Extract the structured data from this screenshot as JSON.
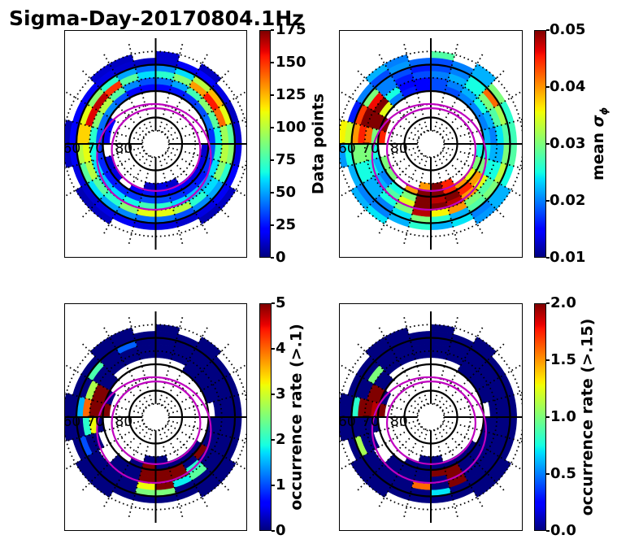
{
  "suptitle": "Sigma-Day-20170804.1Hz",
  "shared_overlay": {
    "projection": "polar MLAT/MLT, MLT 0 at bottom, 6 right, 12 top, 18 left",
    "solid_mlat_circles": [
      60,
      70,
      80
    ],
    "dotted_mlat_circles": [
      55,
      65,
      75,
      85
    ],
    "mlt_line_step_hours": 1,
    "grid_color": "#000000",
    "lat_labels": [
      "60",
      "70",
      "80"
    ],
    "oval_boundaries": [
      {
        "name": "oval-equatorward",
        "color": "#bf00bf",
        "mlat_at_mlt": {
          "0": 65.1,
          "6": 69.1,
          "12": 74.9,
          "18": 67.8
        }
      },
      {
        "name": "oval-poleward",
        "color": "#bf00bf",
        "mlat_at_mlt": {
          "0": 72.2,
          "6": 73.1,
          "12": 76.5,
          "18": 73.4
        }
      }
    ]
  },
  "chart_data": [
    {
      "type": "heatmap",
      "title": "",
      "colorbar": {
        "label": "Data points",
        "colormap": "jet",
        "range": [
          0,
          175
        ],
        "ticks": [
          0,
          25,
          50,
          75,
          100,
          125,
          150,
          175
        ],
        "tick_labels": [
          "0",
          "25",
          "50",
          "75",
          "100",
          "125",
          "150",
          "175"
        ]
      },
      "mlat_bands": [
        [
          55,
          57.5
        ],
        [
          57.5,
          60
        ],
        [
          60,
          62.5
        ],
        [
          62.5,
          65
        ],
        [
          65,
          67.5
        ],
        [
          67.5,
          70
        ],
        [
          70,
          72.5
        ],
        [
          72.5,
          75
        ]
      ],
      "mlt_bin_hours": 1,
      "values": [
        [
          null,
          null,
          8,
          10,
          null,
          null,
          null,
          null,
          null,
          10,
          null,
          12,
          null,
          10,
          12,
          null,
          null,
          8,
          10,
          null,
          8,
          10,
          null,
          null
        ],
        [
          15,
          12,
          15,
          18,
          20,
          15,
          12,
          10,
          15,
          20,
          18,
          12,
          10,
          12,
          15,
          18,
          22,
          20,
          18,
          15,
          12,
          15,
          18,
          15
        ],
        [
          40,
          35,
          45,
          50,
          70,
          90,
          80,
          110,
          125,
          100,
          60,
          45,
          40,
          50,
          70,
          90,
          110,
          120,
          100,
          80,
          60,
          50,
          45,
          40
        ],
        [
          110,
          100,
          70,
          60,
          90,
          100,
          95,
          140,
          155,
          130,
          90,
          70,
          60,
          80,
          150,
          165,
          160,
          120,
          110,
          100,
          80,
          70,
          90,
          110
        ],
        [
          70,
          60,
          55,
          50,
          60,
          70,
          65,
          80,
          90,
          75,
          50,
          40,
          35,
          45,
          80,
          100,
          90,
          70,
          65,
          60,
          55,
          60,
          65,
          75
        ],
        [
          35,
          30,
          28,
          25,
          30,
          35,
          30,
          40,
          35,
          30,
          25,
          22,
          20,
          22,
          35,
          45,
          40,
          35,
          30,
          28,
          25,
          28,
          30,
          35
        ],
        [
          22,
          20,
          18,
          15,
          15,
          12,
          null,
          null,
          null,
          null,
          null,
          null,
          null,
          null,
          null,
          null,
          20,
          18,
          null,
          12,
          15,
          null,
          20,
          25
        ],
        [
          15,
          12,
          null,
          null,
          null,
          null,
          null,
          null,
          null,
          null,
          null,
          null,
          null,
          null,
          null,
          null,
          null,
          null,
          null,
          null,
          null,
          null,
          null,
          10
        ]
      ]
    },
    {
      "type": "heatmap",
      "title": "",
      "colorbar": {
        "label": "mean ",
        "label_symbol": "σ",
        "label_subscript": "ϕ",
        "colormap": "jet",
        "range": [
          0.01,
          0.05
        ],
        "ticks": [
          0.01,
          0.02,
          0.03,
          0.04,
          0.05
        ],
        "tick_labels": [
          "0.01",
          "0.02",
          "0.03",
          "0.04",
          "0.05"
        ]
      },
      "mlat_bands": [
        [
          55,
          57.5
        ],
        [
          57.5,
          60
        ],
        [
          60,
          62.5
        ],
        [
          62.5,
          65
        ],
        [
          65,
          67.5
        ],
        [
          67.5,
          70
        ],
        [
          70,
          72.5
        ],
        [
          72.5,
          75
        ]
      ],
      "mlt_bin_hours": 1,
      "values": [
        [
          null,
          null,
          0.021,
          0.022,
          null,
          null,
          null,
          null,
          null,
          0.022,
          null,
          0.028,
          null,
          0.02,
          0.022,
          null,
          null,
          0.036,
          0.021,
          null,
          0.022,
          0.024,
          null,
          null
        ],
        [
          0.022,
          0.024,
          0.02,
          0.022,
          0.025,
          0.028,
          0.027,
          0.026,
          0.03,
          0.022,
          0.02,
          0.018,
          0.019,
          0.021,
          0.018,
          0.02,
          0.016,
          0.034,
          0.025,
          0.022,
          0.02,
          0.02,
          0.022,
          0.026
        ],
        [
          0.026,
          0.022,
          0.028,
          0.03,
          0.033,
          0.03,
          0.028,
          0.032,
          0.042,
          0.025,
          0.02,
          0.018,
          0.016,
          0.018,
          0.02,
          0.03,
          0.044,
          0.04,
          0.03,
          0.025,
          0.022,
          0.02,
          0.024,
          0.03
        ],
        [
          0.036,
          0.04,
          0.03,
          0.028,
          0.025,
          0.022,
          0.024,
          0.028,
          0.03,
          0.025,
          0.022,
          0.02,
          0.018,
          0.016,
          0.02,
          0.046,
          0.05,
          0.045,
          0.03,
          0.025,
          0.022,
          0.025,
          0.03,
          0.048
        ],
        [
          0.05,
          0.048,
          0.04,
          0.035,
          0.025,
          0.022,
          0.02,
          0.022,
          0.025,
          0.022,
          0.02,
          0.018,
          0.015,
          0.015,
          0.025,
          0.05,
          0.05,
          0.042,
          0.03,
          0.025,
          0.022,
          0.028,
          0.035,
          0.05
        ],
        [
          0.048,
          0.05,
          0.045,
          0.04,
          0.03,
          0.025,
          0.022,
          0.02,
          0.02,
          0.02,
          0.018,
          0.018,
          0.015,
          0.016,
          0.02,
          0.035,
          0.05,
          0.03,
          0.025,
          0.022,
          0.02,
          0.025,
          0.03,
          0.05
        ],
        [
          0.05,
          0.045,
          0.04,
          0.035,
          0.03,
          0.025,
          null,
          null,
          null,
          null,
          null,
          null,
          null,
          null,
          null,
          null,
          0.05,
          0.045,
          null,
          0.03,
          0.03,
          null,
          0.04,
          0.05
        ],
        [
          0.05,
          0.045,
          null,
          null,
          null,
          null,
          null,
          null,
          null,
          null,
          null,
          null,
          null,
          null,
          null,
          null,
          null,
          null,
          null,
          null,
          null,
          null,
          null,
          0.04
        ]
      ]
    },
    {
      "type": "heatmap",
      "title": "",
      "colorbar": {
        "label": "occurrence rate (>.1)",
        "colormap": "jet",
        "range": [
          0,
          5
        ],
        "ticks": [
          0,
          1,
          2,
          3,
          4,
          5
        ],
        "tick_labels": [
          "0",
          "1",
          "2",
          "3",
          "4",
          "5"
        ]
      },
      "mlat_bands": [
        [
          55,
          57.5
        ],
        [
          57.5,
          60
        ],
        [
          60,
          62.5
        ],
        [
          62.5,
          65
        ],
        [
          65,
          67.5
        ],
        [
          67.5,
          70
        ],
        [
          70,
          72.5
        ],
        [
          72.5,
          75
        ]
      ],
      "mlt_bin_hours": 1,
      "values": [
        [
          null,
          null,
          0,
          0,
          null,
          null,
          null,
          null,
          null,
          0,
          null,
          0,
          null,
          0,
          0,
          null,
          null,
          0,
          0,
          null,
          0,
          0,
          null,
          null
        ],
        [
          0,
          0,
          0,
          0,
          0,
          0,
          0,
          0,
          0,
          0,
          0,
          0,
          0,
          0,
          0,
          0,
          0,
          0,
          0,
          0,
          0,
          0,
          0,
          0
        ],
        [
          2.5,
          0,
          0,
          0,
          0,
          0,
          0,
          0,
          0,
          0,
          0,
          0,
          0,
          1.1,
          0,
          2.2,
          0,
          1.5,
          0,
          1,
          0,
          0,
          0,
          2.5
        ],
        [
          5,
          1.8,
          2.3,
          0,
          0,
          0,
          0,
          0,
          0,
          0,
          0,
          0,
          0,
          0,
          0,
          0,
          2.8,
          4,
          2,
          0,
          0,
          0,
          0,
          3.2
        ],
        [
          5,
          5,
          2,
          0,
          0,
          0,
          0,
          0,
          0,
          0,
          0,
          0,
          0,
          0,
          0,
          0,
          5,
          5,
          3.2,
          0,
          null,
          0,
          0,
          5
        ],
        [
          5,
          5,
          0,
          5,
          0,
          0,
          null,
          0,
          0,
          0,
          null,
          null,
          null,
          null,
          null,
          0,
          5,
          5,
          0,
          null,
          null,
          0,
          0,
          5
        ],
        [
          0,
          0,
          0,
          0,
          null,
          null,
          null,
          null,
          null,
          null,
          null,
          null,
          null,
          null,
          null,
          null,
          0,
          5,
          null,
          null,
          null,
          null,
          0,
          5
        ],
        [
          0,
          null,
          null,
          null,
          null,
          null,
          null,
          null,
          null,
          null,
          null,
          null,
          null,
          null,
          null,
          null,
          null,
          null,
          null,
          null,
          null,
          null,
          null,
          0
        ]
      ]
    },
    {
      "type": "heatmap",
      "title": "",
      "colorbar": {
        "label": "occurrence rate (>.15)",
        "colormap": "jet",
        "range": [
          0,
          2
        ],
        "ticks": [
          0,
          0.5,
          1,
          1.5,
          2
        ],
        "tick_labels": [
          "0.0",
          "0.5",
          "1.0",
          "1.5",
          "2.0"
        ]
      },
      "mlat_bands": [
        [
          55,
          57.5
        ],
        [
          57.5,
          60
        ],
        [
          60,
          62.5
        ],
        [
          62.5,
          65
        ],
        [
          65,
          67.5
        ],
        [
          67.5,
          70
        ],
        [
          70,
          72.5
        ],
        [
          72.5,
          75
        ]
      ],
      "mlt_bin_hours": 1,
      "values": [
        [
          null,
          null,
          0,
          0,
          null,
          null,
          null,
          null,
          null,
          0,
          null,
          0,
          null,
          0,
          0,
          null,
          null,
          0,
          0,
          null,
          0,
          0,
          null,
          null
        ],
        [
          0,
          0,
          0,
          0,
          0,
          0,
          0,
          0,
          0,
          0,
          0,
          0,
          0,
          0,
          0,
          0,
          0,
          0,
          0,
          0,
          0,
          0,
          0,
          0
        ],
        [
          0.7,
          0,
          0,
          0,
          0,
          0,
          0,
          0,
          0,
          0,
          0,
          0,
          0,
          0,
          0,
          0,
          0,
          0.8,
          0,
          1.1,
          0,
          0,
          0,
          0
        ],
        [
          0,
          2,
          0,
          0,
          0,
          0,
          0,
          0,
          0,
          0,
          0,
          0,
          0,
          0,
          0,
          1,
          0,
          2,
          0,
          0,
          0,
          0,
          0,
          1.6
        ],
        [
          0,
          2,
          0,
          0,
          0,
          0,
          0,
          0,
          0,
          0,
          0,
          0,
          0,
          0,
          0,
          0,
          2,
          2,
          0,
          0,
          null,
          0,
          0,
          0
        ],
        [
          2,
          2,
          0,
          0,
          0,
          0,
          null,
          0,
          0,
          0,
          null,
          null,
          null,
          null,
          null,
          0,
          2,
          1.9,
          0,
          null,
          null,
          0,
          0,
          0
        ],
        [
          0,
          0,
          0,
          0,
          null,
          null,
          null,
          null,
          null,
          null,
          null,
          null,
          null,
          null,
          null,
          null,
          0,
          2,
          null,
          null,
          null,
          null,
          0,
          0
        ],
        [
          0,
          null,
          null,
          null,
          null,
          null,
          null,
          null,
          null,
          null,
          null,
          null,
          null,
          null,
          null,
          null,
          null,
          null,
          null,
          null,
          null,
          null,
          null,
          0
        ]
      ]
    }
  ]
}
